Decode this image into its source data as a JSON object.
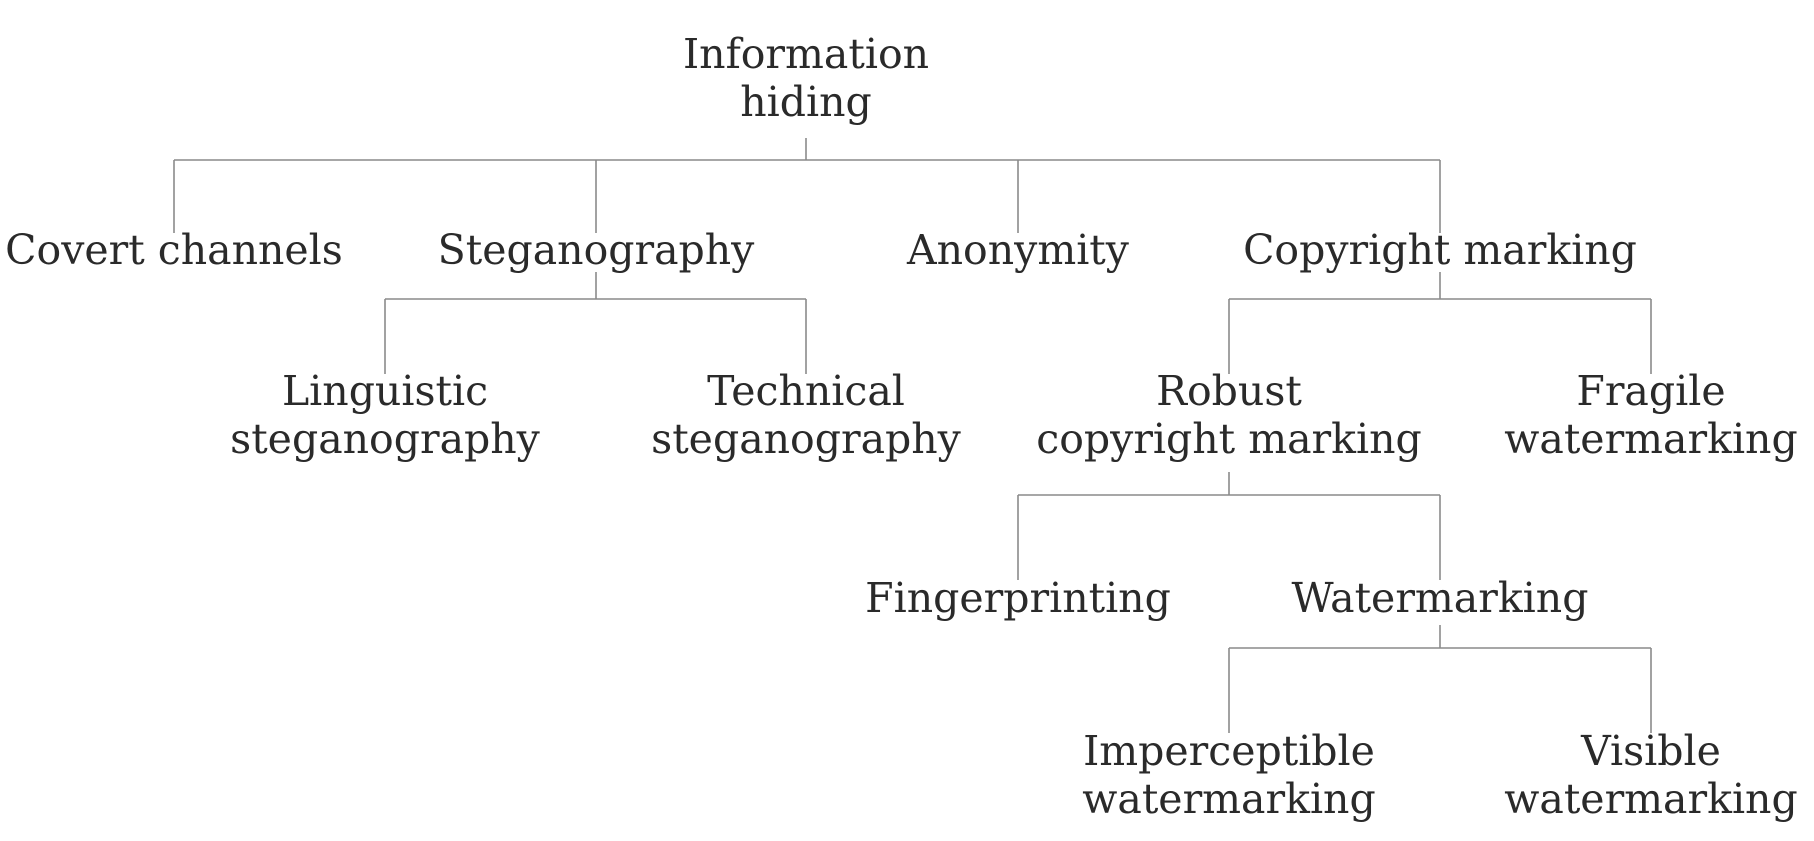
{
  "tree": {
    "root": {
      "line1": "Information",
      "line2": "hiding"
    },
    "covert_channels": {
      "line1": "Covert channels"
    },
    "steganography": {
      "line1": "Steganography"
    },
    "anonymity": {
      "line1": "Anonymity"
    },
    "copyright_marking": {
      "line1": "Copyright marking"
    },
    "linguistic_steganography": {
      "line1": "Linguistic",
      "line2": "steganography"
    },
    "technical_steganography": {
      "line1": "Technical",
      "line2": "steganography"
    },
    "robust_copyright_marking": {
      "line1": "Robust",
      "line2": "copyright marking"
    },
    "fragile_watermarking": {
      "line1": "Fragile",
      "line2": "watermarking"
    },
    "fingerprinting": {
      "line1": "Fingerprinting"
    },
    "watermarking": {
      "line1": "Watermarking"
    },
    "imperceptible_watermarking": {
      "line1": "Imperceptible",
      "line2": "watermarking"
    },
    "visible_watermarking": {
      "line1": "Visible",
      "line2": "watermarking"
    }
  },
  "colors": {
    "text": "#2a2a2a",
    "connector": "#8a8a8a"
  }
}
